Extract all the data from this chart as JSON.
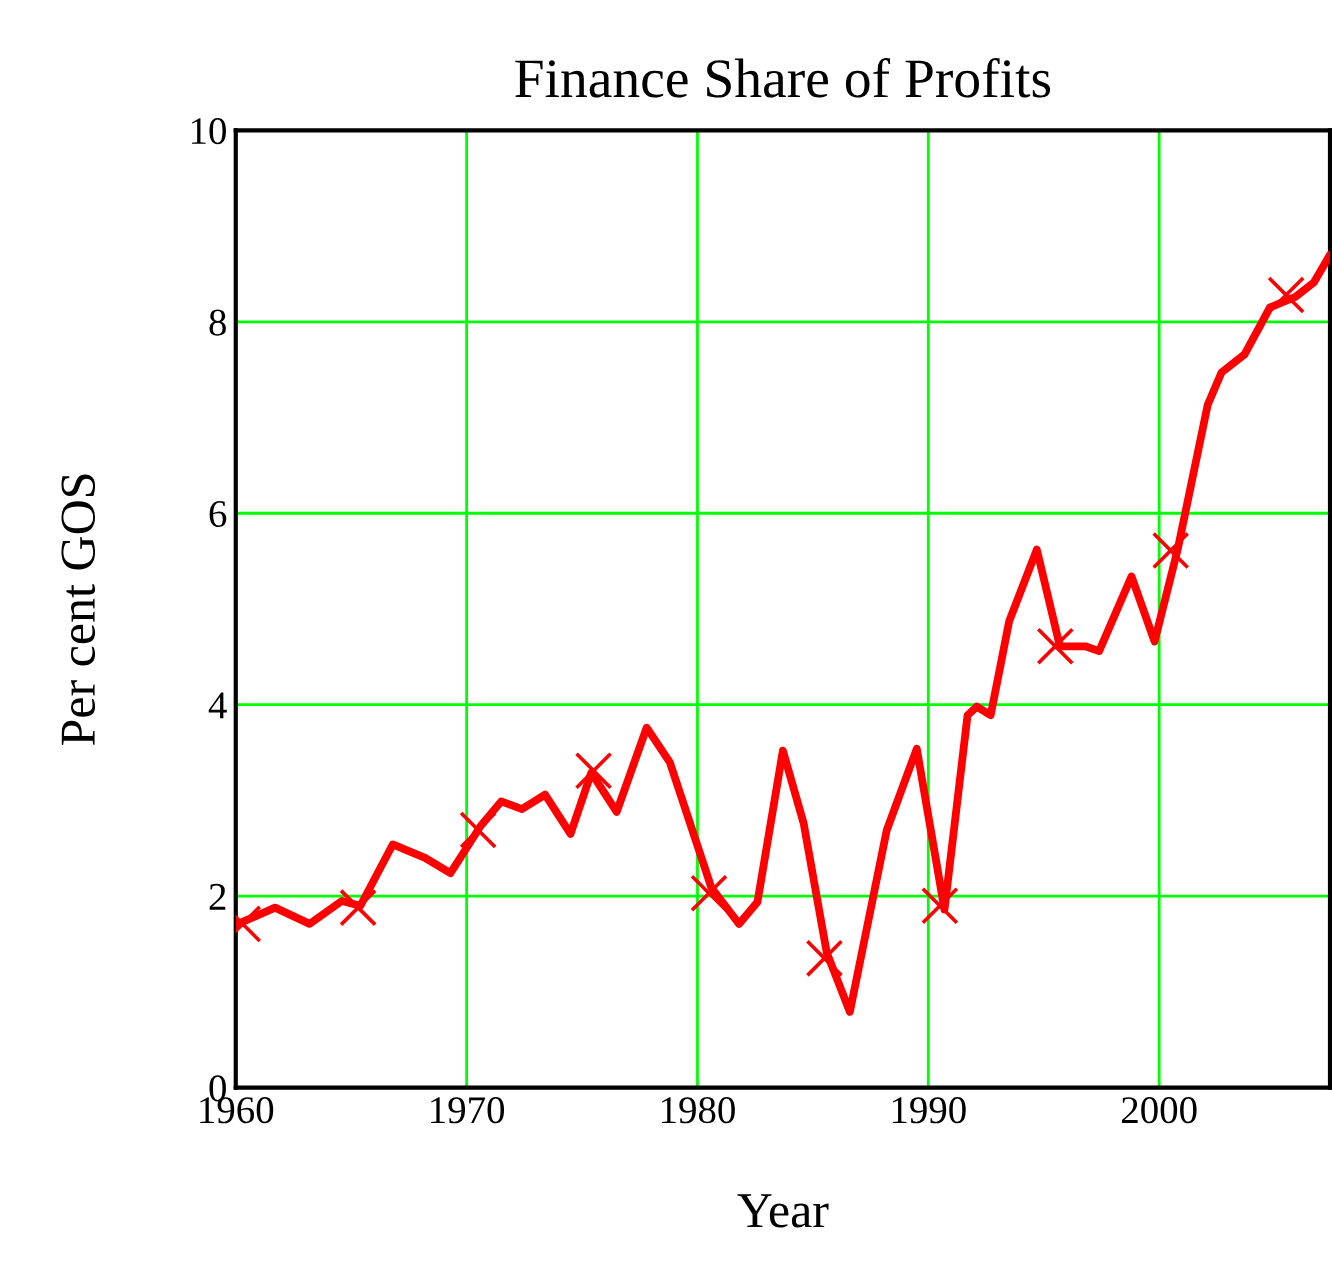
{
  "chart_data": {
    "type": "line",
    "title": "Finance Share of Profits",
    "xlabel": "Year",
    "ylabel": "Per cent GOS",
    "xlim": [
      1960,
      2007.4
    ],
    "xticks": [
      1960,
      1970,
      1980,
      1990,
      2000
    ],
    "ylim": [
      0,
      10
    ],
    "yticks": [
      0,
      2,
      4,
      6,
      8,
      10
    ],
    "grid": true,
    "legend": false,
    "series": [
      {
        "color": "#ff0000",
        "marker": "none",
        "line_style": "solid",
        "x": [
          1960.1,
          1961.7,
          1963.2,
          1964.6,
          1965.4,
          1966.8,
          1968.2,
          1969.3,
          1970.6,
          1971.5,
          1972.4,
          1973.4,
          1974.5,
          1975.4,
          1976.5,
          1977.8,
          1978.8,
          1980.6,
          1981.8,
          1982.6,
          1983.7,
          1984.6,
          1985.6,
          1986.6,
          1988.2,
          1989.5,
          1990.7,
          1991.7,
          1992.1,
          1992.7,
          1993.5,
          1994.7,
          1995.7,
          1996.8,
          1997.4,
          1998.8,
          1999.8,
          2000.8,
          2002.1,
          2002.7,
          2003.7,
          2004.8,
          2005.9,
          2006.7,
          2007.4
        ],
        "values": [
          1.71,
          1.88,
          1.71,
          1.95,
          1.9,
          2.54,
          2.4,
          2.24,
          2.73,
          2.99,
          2.91,
          3.06,
          2.65,
          3.29,
          2.88,
          3.76,
          3.4,
          2.09,
          1.71,
          1.94,
          3.52,
          2.76,
          1.41,
          0.79,
          2.69,
          3.54,
          1.86,
          3.89,
          3.98,
          3.89,
          4.87,
          5.62,
          4.61,
          4.61,
          4.56,
          5.34,
          4.66,
          5.62,
          7.13,
          7.47,
          7.66,
          8.15,
          8.26,
          8.41,
          8.7
        ]
      },
      {
        "type": "scatter",
        "color": "#ff0000",
        "marker": "cross",
        "x": [
          1960.3,
          1965.3,
          1970.5,
          1975.5,
          1980.5,
          1985.5,
          1990.5,
          1995.5,
          2000.5,
          2005.5
        ],
        "values": [
          1.71,
          1.88,
          2.69,
          3.31,
          2.03,
          1.35,
          1.9,
          4.61,
          5.61,
          8.28
        ]
      }
    ]
  }
}
